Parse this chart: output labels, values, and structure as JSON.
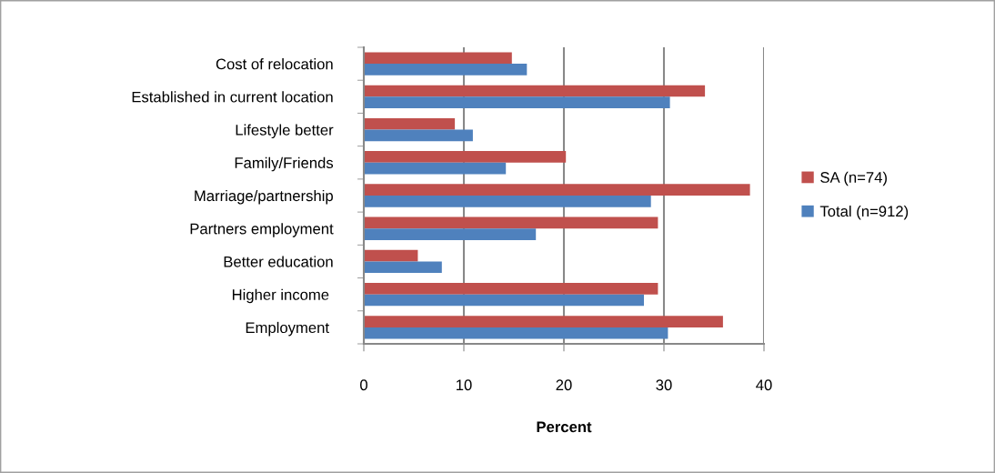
{
  "chart_data": {
    "type": "bar",
    "orientation": "horizontal",
    "xlabel": "Percent",
    "categories": [
      "Cost of relocation",
      "Established in current location",
      "Lifestyle better",
      "Family/Friends",
      "Marriage/partnership",
      "Partners employment",
      "Better education",
      "Higher income ",
      "Employment "
    ],
    "series": [
      {
        "name": "SA (n=74)",
        "color": "#c0504d",
        "values": [
          14.8,
          34.1,
          9.1,
          20.2,
          38.6,
          29.4,
          5.4,
          29.4,
          35.9
        ]
      },
      {
        "name": "Total (n=912)",
        "color": "#4f81bd",
        "values": [
          16.3,
          30.6,
          10.9,
          14.2,
          28.7,
          17.2,
          7.8,
          28.0,
          30.4
        ]
      }
    ],
    "xlim": [
      0,
      40
    ],
    "xticks": [
      0,
      10,
      20,
      30,
      40
    ],
    "grid": "x",
    "legend": "right"
  }
}
